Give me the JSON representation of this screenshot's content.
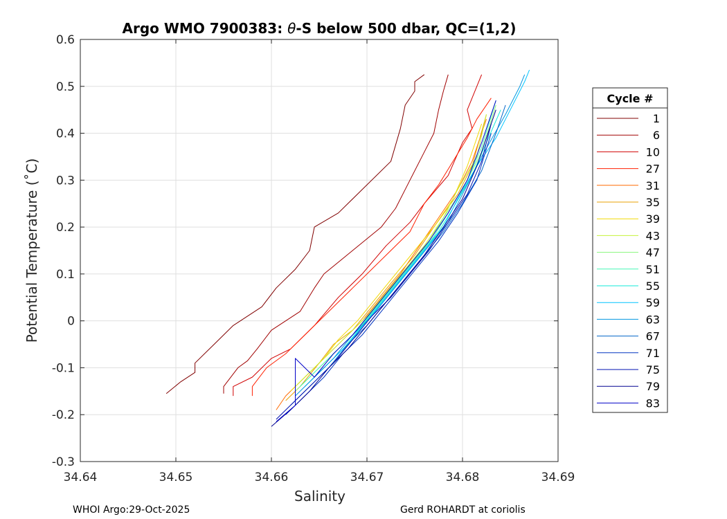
{
  "chart_data": {
    "type": "line",
    "title_prefix": "Argo WMO 7900383: ",
    "title_theta": "θ",
    "title_suffix": "-S below 500 dbar,  QC=(1,2)",
    "xlabel": "Salinity",
    "ylabel": "Potential Temperature (˚C)",
    "xlim": [
      34.64,
      34.69
    ],
    "ylim": [
      -0.3,
      0.6
    ],
    "xticks": [
      34.64,
      34.65,
      34.66,
      34.67,
      34.68,
      34.69
    ],
    "xtick_labels": [
      "34.64",
      "34.65",
      "34.66",
      "34.67",
      "34.68",
      "34.69"
    ],
    "yticks": [
      -0.3,
      -0.2,
      -0.1,
      0,
      0.1,
      0.2,
      0.3,
      0.4,
      0.5,
      0.6
    ],
    "ytick_labels": [
      "-0.3",
      "-0.2",
      "-0.1",
      "0",
      "0.1",
      "0.2",
      "0.3",
      "0.4",
      "0.5",
      "0.6"
    ],
    "grid": true,
    "legend_title": "Cycle #",
    "legend_position": "outside-right",
    "legend": [
      {
        "label": "1",
        "color": "#800000"
      },
      {
        "label": "6",
        "color": "#a00000"
      },
      {
        "label": "10",
        "color": "#d00000"
      },
      {
        "label": "27",
        "color": "#ff1f00"
      },
      {
        "label": "31",
        "color": "#ff6a00"
      },
      {
        "label": "35",
        "color": "#e8a000"
      },
      {
        "label": "39",
        "color": "#f2d800"
      },
      {
        "label": "43",
        "color": "#c6f23a"
      },
      {
        "label": "47",
        "color": "#86f77a"
      },
      {
        "label": "51",
        "color": "#46f7b5"
      },
      {
        "label": "55",
        "color": "#12e8d8"
      },
      {
        "label": "59",
        "color": "#00c4ff"
      },
      {
        "label": "63",
        "color": "#0096e0"
      },
      {
        "label": "67",
        "color": "#0064c8"
      },
      {
        "label": "71",
        "color": "#0033c0"
      },
      {
        "label": "75",
        "color": "#0010b0"
      },
      {
        "label": "79",
        "color": "#000090"
      },
      {
        "label": "83",
        "color": "#0000c8"
      }
    ],
    "series": [
      {
        "name": "1",
        "color": "#800000",
        "s": [
          34.649,
          34.6505,
          34.652,
          34.652,
          34.654,
          34.656,
          34.659,
          34.6605,
          34.6625,
          34.664,
          34.6645,
          34.667,
          34.6695,
          34.6725,
          34.6735,
          34.674,
          34.675,
          34.675,
          34.676
        ],
        "t": [
          -0.155,
          -0.13,
          -0.11,
          -0.09,
          -0.05,
          -0.01,
          0.03,
          0.07,
          0.11,
          0.15,
          0.2,
          0.23,
          0.28,
          0.34,
          0.41,
          0.46,
          0.49,
          0.51,
          0.525
        ]
      },
      {
        "name": "6",
        "color": "#a00000",
        "s": [
          34.655,
          34.655,
          34.6565,
          34.6575,
          34.6585,
          34.66,
          34.663,
          34.6645,
          34.6655,
          34.6685,
          34.6715,
          34.673,
          34.6745,
          34.676,
          34.677,
          34.6775,
          34.678,
          34.6785
        ],
        "t": [
          -0.155,
          -0.14,
          -0.1,
          -0.085,
          -0.06,
          -0.02,
          0.02,
          0.07,
          0.1,
          0.15,
          0.2,
          0.24,
          0.3,
          0.36,
          0.4,
          0.45,
          0.49,
          0.525
        ]
      },
      {
        "name": "10",
        "color": "#d00000",
        "s": [
          34.656,
          34.656,
          34.658,
          34.66,
          34.662,
          34.6645,
          34.667,
          34.6695,
          34.672,
          34.6745,
          34.676,
          34.6785,
          34.68,
          34.681,
          34.6805,
          34.6815,
          34.682
        ],
        "t": [
          -0.16,
          -0.14,
          -0.12,
          -0.08,
          -0.06,
          -0.01,
          0.05,
          0.1,
          0.16,
          0.21,
          0.25,
          0.31,
          0.38,
          0.41,
          0.45,
          0.5,
          0.525
        ]
      },
      {
        "name": "27",
        "color": "#ff1f00",
        "s": [
          34.658,
          34.658,
          34.6595,
          34.6615,
          34.6635,
          34.666,
          34.6685,
          34.6705,
          34.6725,
          34.6745,
          34.676,
          34.6775,
          34.679,
          34.6805,
          34.6815,
          34.683
        ],
        "t": [
          -0.16,
          -0.14,
          -0.1,
          -0.07,
          -0.03,
          0.02,
          0.07,
          0.11,
          0.15,
          0.19,
          0.25,
          0.29,
          0.34,
          0.39,
          0.43,
          0.475
        ]
      },
      {
        "name": "31",
        "color": "#ff6a00",
        "s": [
          34.6605,
          34.6615,
          34.6635,
          34.6655,
          34.6675,
          34.6695,
          34.6715,
          34.6735,
          34.6755,
          34.6775,
          34.6795,
          34.681,
          34.6825
        ],
        "t": [
          -0.19,
          -0.16,
          -0.12,
          -0.08,
          -0.04,
          0.0,
          0.05,
          0.1,
          0.16,
          0.22,
          0.28,
          0.34,
          0.43
        ]
      },
      {
        "name": "35",
        "color": "#e8a000",
        "s": [
          34.6615,
          34.663,
          34.665,
          34.6665,
          34.6685,
          34.6705,
          34.6725,
          34.675,
          34.677,
          34.6795,
          34.681,
          34.6825
        ],
        "t": [
          -0.17,
          -0.14,
          -0.09,
          -0.05,
          -0.02,
          0.03,
          0.08,
          0.14,
          0.2,
          0.27,
          0.33,
          0.44
        ]
      },
      {
        "name": "39",
        "color": "#f2d800",
        "s": [
          34.662,
          34.6635,
          34.6655,
          34.667,
          34.669,
          34.671,
          34.673,
          34.675,
          34.677,
          34.679,
          34.6805,
          34.682
        ],
        "t": [
          -0.15,
          -0.12,
          -0.08,
          -0.04,
          0.0,
          0.05,
          0.1,
          0.15,
          0.2,
          0.26,
          0.33,
          0.42
        ]
      },
      {
        "name": "43",
        "color": "#c6f23a",
        "s": [
          34.6625,
          34.664,
          34.666,
          34.668,
          34.67,
          34.672,
          34.674,
          34.676,
          34.678,
          34.6795,
          34.6815,
          34.6825
        ],
        "t": [
          -0.14,
          -0.11,
          -0.07,
          -0.03,
          0.01,
          0.06,
          0.11,
          0.16,
          0.22,
          0.28,
          0.35,
          0.44
        ]
      },
      {
        "name": "47",
        "color": "#86f77a",
        "s": [
          34.6625,
          34.6645,
          34.6665,
          34.6685,
          34.6705,
          34.6725,
          34.6745,
          34.6765,
          34.678,
          34.68,
          34.682,
          34.6835
        ],
        "t": [
          -0.15,
          -0.11,
          -0.07,
          -0.03,
          0.02,
          0.07,
          0.12,
          0.17,
          0.22,
          0.28,
          0.36,
          0.46
        ]
      },
      {
        "name": "51",
        "color": "#46f7b5",
        "s": [
          34.663,
          34.665,
          34.667,
          34.669,
          34.671,
          34.673,
          34.675,
          34.677,
          34.6785,
          34.6805,
          34.682,
          34.6835
        ],
        "t": [
          -0.14,
          -0.1,
          -0.06,
          -0.02,
          0.03,
          0.08,
          0.13,
          0.18,
          0.23,
          0.3,
          0.37,
          0.47
        ]
      },
      {
        "name": "55",
        "color": "#12e8d8",
        "s": [
          34.6635,
          34.6655,
          34.6675,
          34.6695,
          34.6715,
          34.6735,
          34.6755,
          34.6775,
          34.679,
          34.681,
          34.6825,
          34.684
        ],
        "t": [
          -0.14,
          -0.1,
          -0.06,
          -0.01,
          0.04,
          0.09,
          0.14,
          0.19,
          0.24,
          0.31,
          0.38,
          0.45
        ]
      },
      {
        "name": "59",
        "color": "#00c4ff",
        "s": [
          34.664,
          34.666,
          34.668,
          34.67,
          34.672,
          34.674,
          34.676,
          34.678,
          34.6795,
          34.6815,
          34.6835,
          34.685,
          34.6865,
          34.687
        ],
        "t": [
          -0.13,
          -0.09,
          -0.05,
          0.0,
          0.05,
          0.1,
          0.15,
          0.2,
          0.26,
          0.33,
          0.39,
          0.45,
          0.51,
          0.535
        ]
      },
      {
        "name": "63",
        "color": "#0096e0",
        "s": [
          34.6625,
          34.6645,
          34.6665,
          34.6685,
          34.6705,
          34.6725,
          34.6745,
          34.6765,
          34.6785,
          34.68,
          34.682,
          34.6845,
          34.686,
          34.6865
        ],
        "t": [
          -0.16,
          -0.12,
          -0.08,
          -0.03,
          0.01,
          0.06,
          0.11,
          0.16,
          0.21,
          0.27,
          0.35,
          0.44,
          0.5,
          0.525
        ]
      },
      {
        "name": "67",
        "color": "#0064c8",
        "s": [
          34.662,
          34.664,
          34.666,
          34.668,
          34.67,
          34.672,
          34.674,
          34.676,
          34.678,
          34.68,
          34.682,
          34.6835,
          34.6845
        ],
        "t": [
          -0.18,
          -0.14,
          -0.1,
          -0.05,
          -0.01,
          0.04,
          0.09,
          0.14,
          0.19,
          0.25,
          0.32,
          0.4,
          0.46
        ]
      },
      {
        "name": "71",
        "color": "#0033c0",
        "s": [
          34.6615,
          34.6635,
          34.6655,
          34.6675,
          34.6695,
          34.6715,
          34.6735,
          34.6755,
          34.6775,
          34.6795,
          34.6815,
          34.683
        ],
        "t": [
          -0.2,
          -0.16,
          -0.12,
          -0.07,
          -0.03,
          0.02,
          0.07,
          0.12,
          0.17,
          0.23,
          0.3,
          0.4
        ]
      },
      {
        "name": "75",
        "color": "#0010b0",
        "s": [
          34.6605,
          34.6625,
          34.6645,
          34.6665,
          34.6685,
          34.6705,
          34.6725,
          34.6745,
          34.6765,
          34.6785,
          34.6805,
          34.682,
          34.683
        ],
        "t": [
          -0.21,
          -0.17,
          -0.13,
          -0.09,
          -0.04,
          0.01,
          0.05,
          0.1,
          0.15,
          0.21,
          0.27,
          0.34,
          0.42
        ]
      },
      {
        "name": "79",
        "color": "#000090",
        "s": [
          34.66,
          34.662,
          34.664,
          34.666,
          34.668,
          34.67,
          34.672,
          34.674,
          34.676,
          34.678,
          34.68,
          34.6815,
          34.6835
        ],
        "t": [
          -0.225,
          -0.19,
          -0.15,
          -0.1,
          -0.06,
          -0.01,
          0.04,
          0.09,
          0.14,
          0.2,
          0.26,
          0.33,
          0.45
        ]
      },
      {
        "name": "83",
        "color": "#0000c8",
        "s": [
          34.6605,
          34.6625,
          34.6625,
          34.6645,
          34.6665,
          34.6685,
          34.6705,
          34.6725,
          34.6745,
          34.6765,
          34.6785,
          34.6805,
          34.682,
          34.6835
        ],
        "t": [
          -0.215,
          -0.18,
          -0.08,
          -0.12,
          -0.07,
          -0.03,
          0.02,
          0.07,
          0.12,
          0.17,
          0.23,
          0.3,
          0.38,
          0.47
        ]
      }
    ]
  },
  "footer": {
    "left": "WHOI Argo:29-Oct-2025",
    "right": "Gerd ROHARDT at coriolis"
  }
}
